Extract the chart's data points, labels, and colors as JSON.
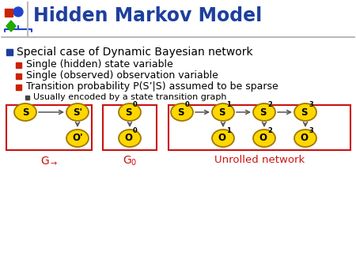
{
  "title": "Hidden Markov Model",
  "title_color": "#1E3F9E",
  "bg_color": "#FFFFFF",
  "bullet1": "Special case of Dynamic Bayesian network",
  "bullet2": "Single (hidden) state variable",
  "bullet3": "Single (observed) observation variable",
  "bullet4": "Transition probability P(S’|S) assumed to be sparse",
  "bullet5": "Usually encoded by a state transition graph",
  "node_fill": "#FFD700",
  "node_edge": "#A07800",
  "box_edge": "#CC1111",
  "label_color": "#CC1111",
  "arrow_color": "#555555",
  "unrolled_label": "Unrolled network"
}
